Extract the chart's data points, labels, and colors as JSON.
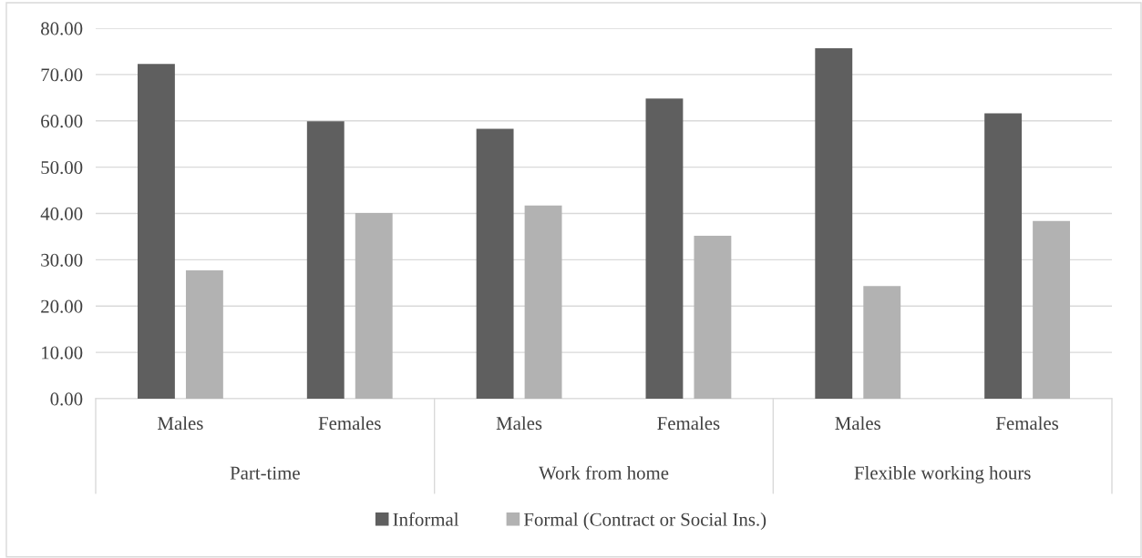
{
  "chart_data": {
    "type": "bar",
    "categories": [
      "Males",
      "Females",
      "Males",
      "Females",
      "Males",
      "Females"
    ],
    "annotations": [
      "Part-time",
      "Work from home",
      "Flexible working hours"
    ],
    "series": [
      {
        "name": "Informal",
        "color": "#5f5f5f",
        "values": [
          72.3,
          59.9,
          58.3,
          64.8,
          75.7,
          61.6
        ]
      },
      {
        "name": "Formal (Contract or Social Ins.)",
        "color": "#b2b2b2",
        "values": [
          27.7,
          40.1,
          41.7,
          35.2,
          24.3,
          38.4
        ]
      }
    ],
    "ylim": [
      0,
      80
    ],
    "yticks": [
      {
        "value": 0,
        "label": "0.00"
      },
      {
        "value": 10,
        "label": "10.00"
      },
      {
        "value": 20,
        "label": "20.00"
      },
      {
        "value": 30,
        "label": "30.00"
      },
      {
        "value": 40,
        "label": "40.00"
      },
      {
        "value": 50,
        "label": "50.00"
      },
      {
        "value": 60,
        "label": "60.00"
      },
      {
        "value": 70,
        "label": "70.00"
      },
      {
        "value": 80,
        "label": "80.00"
      }
    ],
    "grid": "y",
    "legend": "bottom"
  }
}
